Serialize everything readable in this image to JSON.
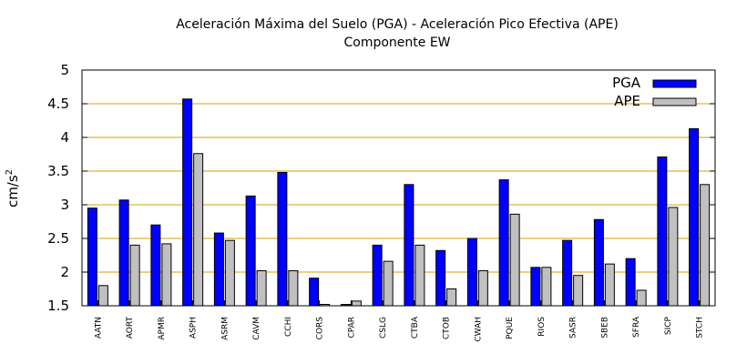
{
  "chart_data": {
    "type": "bar",
    "title": "Aceleración Máxima del Suelo (PGA) -  Aceleración Pico Efectiva (APE)",
    "subtitle": "Componente EW",
    "ylabel_base": "cm/s",
    "ylabel_sup": "2",
    "xlabel": "",
    "ylim": [
      1.5,
      5
    ],
    "yticks": [
      "1.5",
      "2",
      "2.5",
      "3",
      "3.5",
      "4",
      "4.5",
      "5"
    ],
    "grid": true,
    "grid_color": "#d9a000",
    "legend_position": "top-right",
    "categories": [
      "AATN",
      "AORT",
      "APMR",
      "ASPH",
      "ASRM",
      "CAVM",
      "CCHI",
      "CORS",
      "CPAR",
      "CSLG",
      "CTBA",
      "CTOB",
      "CWAH",
      "PQUE",
      "RIOS",
      "SASR",
      "SBEB",
      "SFRA",
      "SICP",
      "STCH"
    ],
    "series": [
      {
        "name": "PGA",
        "color": "#0000ff",
        "values": [
          2.95,
          3.07,
          2.7,
          4.57,
          2.58,
          3.13,
          3.48,
          1.91,
          1.52,
          2.4,
          3.3,
          2.32,
          2.5,
          3.37,
          2.07,
          2.47,
          2.78,
          2.2,
          3.71,
          4.13
        ]
      },
      {
        "name": "APE",
        "color": "#c0c0c0",
        "values": [
          1.8,
          2.4,
          2.42,
          3.76,
          2.47,
          2.02,
          2.02,
          1.52,
          1.57,
          2.16,
          2.4,
          1.75,
          2.02,
          2.86,
          2.07,
          1.95,
          2.12,
          1.73,
          2.96,
          3.3
        ]
      }
    ]
  }
}
